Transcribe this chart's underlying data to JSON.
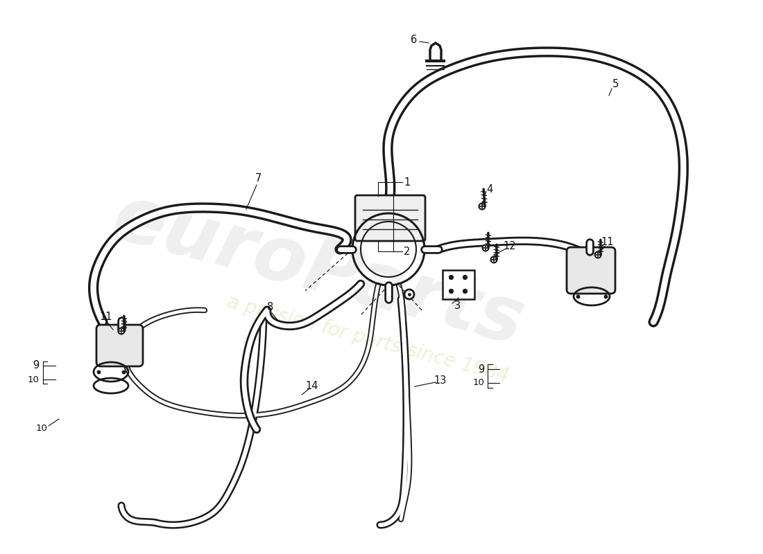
{
  "bg_color": "#ffffff",
  "line_color": "#1a1a1a",
  "label_color": "#111111",
  "watermark1": "euroParts",
  "watermark2": "a passion for parts since 1984",
  "figsize": [
    11.0,
    8.0
  ],
  "dpi": 100
}
